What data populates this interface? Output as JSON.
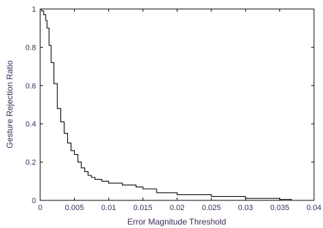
{
  "chart_data": {
    "type": "line",
    "title": "",
    "xlabel": "Error Magnitude Threshold",
    "ylabel": "Gesture Rejection Ratio",
    "xlim": [
      0,
      0.04
    ],
    "ylim": [
      0,
      1
    ],
    "grid": false,
    "xticks": [
      0,
      0.005,
      0.01,
      0.015,
      0.02,
      0.025,
      0.03,
      0.035,
      0.04
    ],
    "xtick_labels": [
      "0",
      "0.005",
      "0.01",
      "0.015",
      "0.02",
      "0.025",
      "0.03",
      "0.035",
      "0.04"
    ],
    "yticks": [
      0,
      0.2,
      0.4,
      0.6,
      0.8,
      1
    ],
    "ytick_labels": [
      "0",
      "0.2",
      "0.4",
      "0.6",
      "0.8",
      "1"
    ],
    "colors": {
      "line": "#000000",
      "axes": "#000000",
      "text": "#3d2a5a"
    },
    "series": [
      {
        "step": true,
        "x": [
          0,
          0.0002,
          0.0005,
          0.0008,
          0.001,
          0.0013,
          0.0016,
          0.002,
          0.0025,
          0.003,
          0.0035,
          0.004,
          0.0045,
          0.005,
          0.0055,
          0.006,
          0.0065,
          0.007,
          0.0075,
          0.008,
          0.009,
          0.01,
          0.011,
          0.012,
          0.013,
          0.014,
          0.015,
          0.017,
          0.02,
          0.025,
          0.03,
          0.033,
          0.035,
          0.0365,
          0.0367
        ],
        "y": [
          1.0,
          0.99,
          0.97,
          0.94,
          0.9,
          0.81,
          0.72,
          0.61,
          0.48,
          0.41,
          0.35,
          0.3,
          0.26,
          0.24,
          0.2,
          0.17,
          0.15,
          0.13,
          0.12,
          0.11,
          0.1,
          0.09,
          0.09,
          0.08,
          0.08,
          0.07,
          0.06,
          0.04,
          0.03,
          0.02,
          0.01,
          0.01,
          0.005,
          0.005,
          0
        ]
      }
    ]
  }
}
